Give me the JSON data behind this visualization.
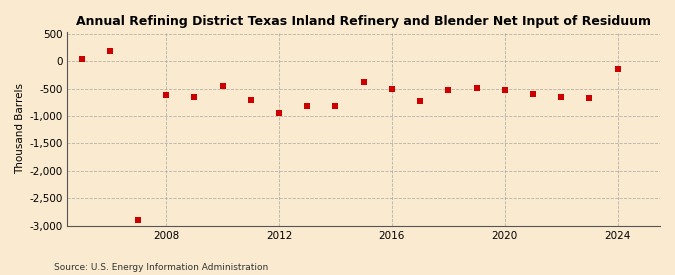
{
  "title": "Annual Refining District Texas Inland Refinery and Blender Net Input of Residuum",
  "ylabel": "Thousand Barrels",
  "source": "Source: U.S. Energy Information Administration",
  "background_color": "#faebd0",
  "plot_background_color": "#faebd0",
  "marker_color": "#cc0000",
  "grid_color": "#999999",
  "years": [
    2005,
    2006,
    2007,
    2008,
    2009,
    2010,
    2011,
    2012,
    2013,
    2014,
    2015,
    2016,
    2017,
    2018,
    2019,
    2020,
    2021,
    2022,
    2023,
    2024
  ],
  "values": [
    30,
    175,
    -2900,
    -620,
    -650,
    -450,
    -700,
    -950,
    -820,
    -820,
    -380,
    -500,
    -720,
    -530,
    -490,
    -530,
    -600,
    -650,
    -680,
    -150
  ],
  "ylim_bottom": -3000,
  "ylim_top": 500,
  "yticks": [
    500,
    0,
    -500,
    -1000,
    -1500,
    -2000,
    -2500,
    -3000
  ],
  "xlim": [
    2004.5,
    2025.5
  ],
  "xticks": [
    2008,
    2012,
    2016,
    2020,
    2024
  ],
  "title_fontsize": 9,
  "ylabel_fontsize": 7.5,
  "tick_fontsize": 7.5,
  "source_fontsize": 6.5
}
